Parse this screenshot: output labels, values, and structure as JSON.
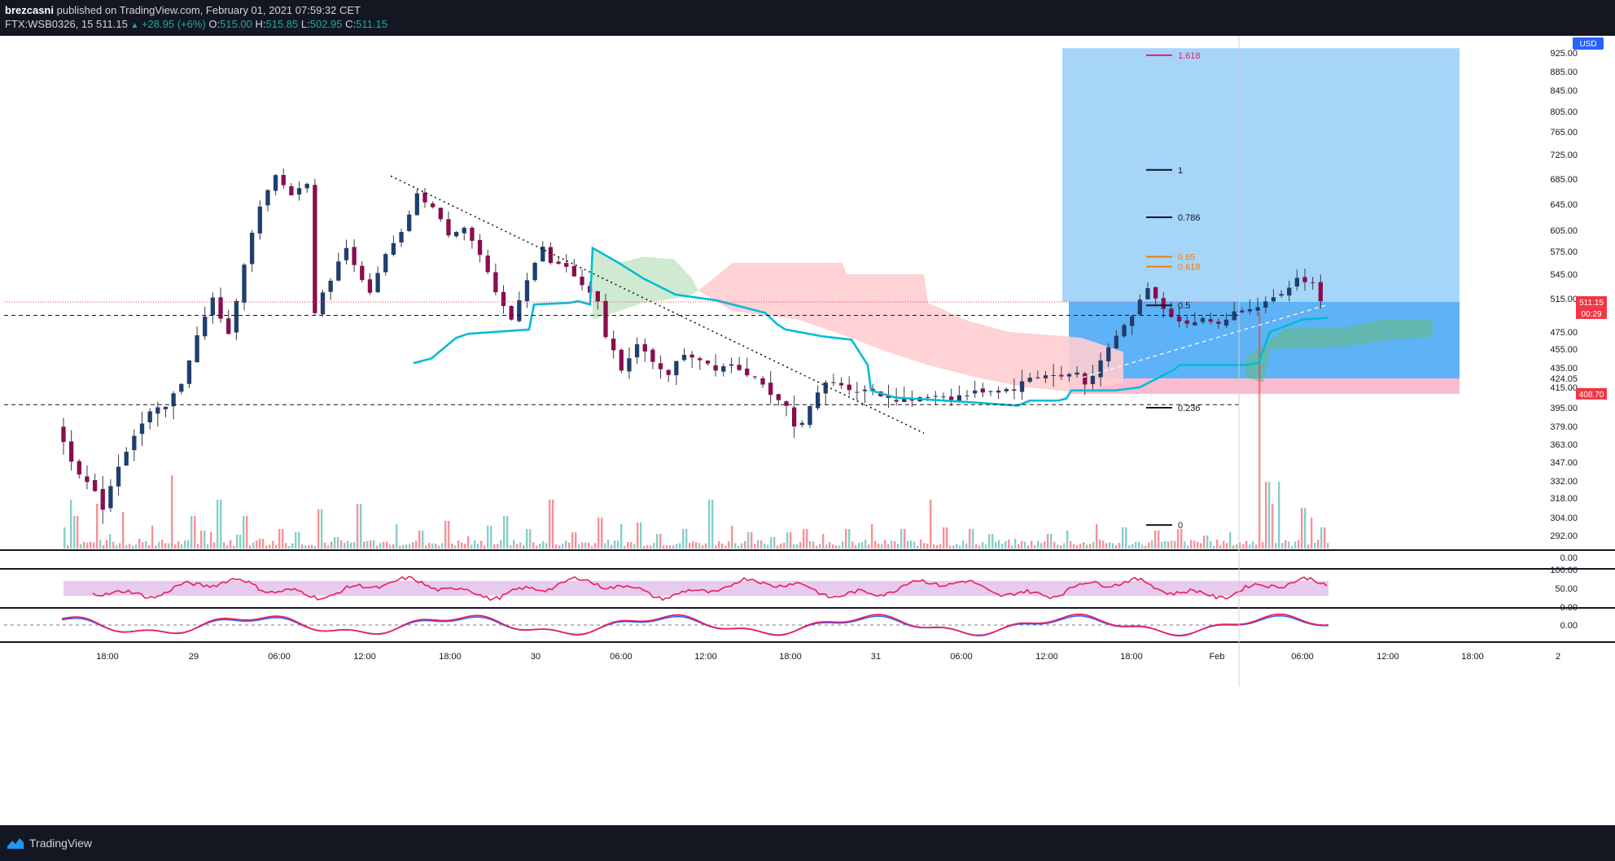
{
  "header": {
    "author": "brezcasni",
    "published_text": "published on TradingView.com, February 01, 2021 07:59:32 CET",
    "symbol": "FTX:WSB0326, 15",
    "last": "511.15",
    "change": "+28.95 (+6%)",
    "open_label": "O:",
    "open": "515.00",
    "high_label": "H:",
    "high": "515.85",
    "low_label": "L:",
    "low": "502.95",
    "close_label": "C:",
    "close": "511.15"
  },
  "footer": {
    "brand": "TradingView"
  },
  "colors": {
    "up": "#26a69a",
    "down": "#880e4f",
    "kijun": "#00bcd4",
    "cloud_bull": "#c8e6c9",
    "cloud_bear": "#ffcdd2",
    "target_zone": "#90caf9",
    "entry_zone": "#42a5f5",
    "stop_zone": "#f8bbd0",
    "rsi": "#e91e63",
    "rsi_band": "#e1bee7",
    "fib_gold": "#f57c00",
    "fib_ext": "#e91e63",
    "price_tag": "#f23645"
  },
  "chart_data": {
    "type": "candlestick",
    "currency": "USD",
    "price_axis_ticks": [
      "925.00",
      "885.00",
      "845.00",
      "805.00",
      "765.00",
      "725.00",
      "685.00",
      "645.00",
      "605.00",
      "575.00",
      "545.00",
      "515.00",
      "475.00",
      "455.00",
      "435.00",
      "424.05",
      "415.00",
      "395.00",
      "379.00",
      "363.00",
      "347.00",
      "332.00",
      "318.00",
      "304.00",
      "292.00"
    ],
    "time_axis_ticks": [
      "18:00",
      "29",
      "06:00",
      "12:00",
      "18:00",
      "30",
      "06:00",
      "12:00",
      "18:00",
      "31",
      "06:00",
      "12:00",
      "18:00",
      "Feb",
      "06:00",
      "12:00",
      "18:00",
      "2"
    ],
    "last_price_label": "511.15",
    "countdown_label": "00:29",
    "stop_price_label": "408.70",
    "fib_levels": [
      {
        "label": "1.618",
        "price": 920,
        "style": "ext"
      },
      {
        "label": "1",
        "price": 700,
        "style": "main"
      },
      {
        "label": "0.786",
        "price": 625,
        "style": "main"
      },
      {
        "label": "0.65",
        "price": 568,
        "style": "gold"
      },
      {
        "label": "0.618",
        "price": 555,
        "style": "gold"
      },
      {
        "label": "0.5",
        "price": 507,
        "style": "main"
      },
      {
        "label": "0.236",
        "price": 395,
        "style": "main"
      },
      {
        "label": "0",
        "price": 299,
        "style": "main"
      }
    ],
    "horizontal_levels": [
      495,
      398
    ],
    "position_tool": {
      "entry": 511.15,
      "target": 935,
      "stop": 408.7
    },
    "rsi_panel": {
      "ticks": [
        "100.00",
        "50.00",
        "0.00"
      ]
    },
    "macd_panel": {
      "ticks": [
        "0.00"
      ]
    },
    "volume_panel": {
      "ticks": [
        "0.00"
      ]
    },
    "price_path_keypoints": [
      [
        0,
        380
      ],
      [
        2,
        350
      ],
      [
        4,
        330
      ],
      [
        6,
        312
      ],
      [
        8,
        345
      ],
      [
        10,
        372
      ],
      [
        12,
        390
      ],
      [
        14,
        395
      ],
      [
        16,
        420
      ],
      [
        18,
        470
      ],
      [
        20,
        515
      ],
      [
        22,
        470
      ],
      [
        24,
        560
      ],
      [
        26,
        640
      ],
      [
        28,
        690
      ],
      [
        30,
        660
      ],
      [
        32,
        680
      ],
      [
        33,
        500
      ],
      [
        35,
        540
      ],
      [
        37,
        580
      ],
      [
        40,
        520
      ],
      [
        42,
        570
      ],
      [
        44,
        600
      ],
      [
        46,
        660
      ],
      [
        48,
        640
      ],
      [
        50,
        600
      ],
      [
        52,
        610
      ],
      [
        54,
        570
      ],
      [
        56,
        520
      ],
      [
        58,
        490
      ],
      [
        60,
        540
      ],
      [
        62,
        580
      ],
      [
        63,
        560
      ],
      [
        65,
        555
      ],
      [
        67,
        530
      ],
      [
        69,
        510
      ],
      [
        70,
        470
      ],
      [
        72,
        435
      ],
      [
        74,
        460
      ],
      [
        76,
        440
      ],
      [
        78,
        430
      ],
      [
        80,
        450
      ],
      [
        82,
        445
      ],
      [
        84,
        435
      ],
      [
        86,
        440
      ],
      [
        88,
        430
      ],
      [
        90,
        420
      ],
      [
        91,
        405
      ],
      [
        93,
        395
      ],
      [
        94,
        378
      ],
      [
        95,
        385
      ],
      [
        96,
        395
      ],
      [
        98,
        420
      ],
      [
        100,
        418
      ],
      [
        102,
        412
      ],
      [
        104,
        412
      ],
      [
        106,
        405
      ],
      [
        108,
        402
      ],
      [
        110,
        403
      ],
      [
        112,
        408
      ],
      [
        114,
        405
      ],
      [
        116,
        408
      ],
      [
        118,
        412
      ],
      [
        120,
        412
      ],
      [
        122,
        414
      ],
      [
        124,
        425
      ],
      [
        126,
        428
      ],
      [
        128,
        426
      ],
      [
        130,
        430
      ],
      [
        131,
        418
      ],
      [
        133,
        440
      ],
      [
        135,
        470
      ],
      [
        137,
        495
      ],
      [
        139,
        530
      ],
      [
        140,
        515
      ],
      [
        142,
        495
      ],
      [
        144,
        485
      ],
      [
        146,
        490
      ],
      [
        148,
        485
      ],
      [
        150,
        498
      ],
      [
        152,
        505
      ],
      [
        154,
        510
      ],
      [
        156,
        518
      ],
      [
        158,
        540
      ],
      [
        160,
        535
      ],
      [
        161,
        511
      ]
    ]
  }
}
